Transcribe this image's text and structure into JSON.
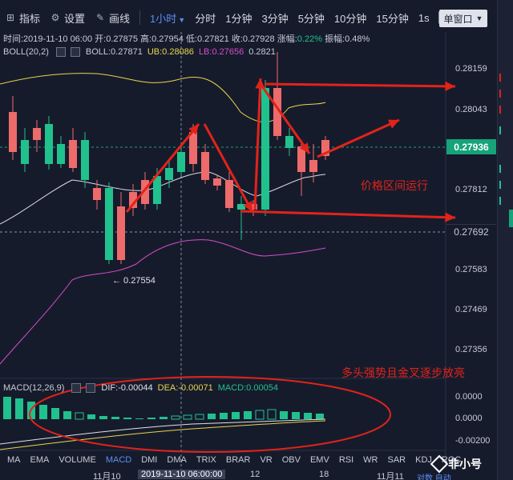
{
  "toolbar": {
    "indicator_label": "指标",
    "settings_label": "设置",
    "draw_label": "画线",
    "timeframes": [
      {
        "label": "1小时",
        "active": true
      },
      {
        "label": "分时",
        "active": false
      },
      {
        "label": "1分钟",
        "active": false
      },
      {
        "label": "3分钟",
        "active": false
      },
      {
        "label": "5分钟",
        "active": false
      },
      {
        "label": "10分钟",
        "active": false
      },
      {
        "label": "15分钟",
        "active": false
      },
      {
        "label": "1s",
        "active": false
      }
    ],
    "window_mode": "单窗口"
  },
  "ohlc_info": {
    "time": "时间:2019-11-10 06:00",
    "open": "开:0.27875",
    "high": "高:0.27954",
    "low": "低:0.27821",
    "close": "收:0.27928",
    "change_label": "涨幅:",
    "change_value": "0.22%",
    "amplitude": "振幅:0.48%"
  },
  "boll_info": {
    "name": "BOLL(20,2)",
    "boll": "BOLL:0.27871",
    "ub": "UB:0.28086",
    "lb": "LB:0.27656",
    "extra": "0.2821"
  },
  "price_axis": [
    "0.28159",
    "0.28043",
    "0.27812",
    "0.27583",
    "0.27469",
    "0.27356"
  ],
  "current_price": "0.27936",
  "reference_price": "0.27692",
  "low_marker": "← 0.27554",
  "macd_info": {
    "name": "MACD(12,26,9)",
    "dif": "DIF:-0.00044",
    "dea": "DEA:-0.00071",
    "macd": "MACD:0.00054"
  },
  "macd_axis": [
    "0.0000",
    "0.0000",
    "-0.00200"
  ],
  "indicators": [
    {
      "label": "MA",
      "active": false
    },
    {
      "label": "EMA",
      "active": false
    },
    {
      "label": "VOLUME",
      "active": false
    },
    {
      "label": "MACD",
      "active": true
    },
    {
      "label": "DMI",
      "active": false
    },
    {
      "label": "DMA",
      "active": false
    },
    {
      "label": "TRIX",
      "active": false
    },
    {
      "label": "BRAR",
      "active": false
    },
    {
      "label": "VR",
      "active": false
    },
    {
      "label": "OBV",
      "active": false
    },
    {
      "label": "EMV",
      "active": false
    },
    {
      "label": "RSI",
      "active": false
    },
    {
      "label": "WR",
      "active": false
    },
    {
      "label": "SAR",
      "active": false
    },
    {
      "label": "KDJ",
      "active": false
    },
    {
      "label": "ROC",
      "active": false
    }
  ],
  "time_axis": {
    "left": "11月10",
    "highlight": "2019-11-10 06:00:00",
    "mid": "12",
    "right": "18",
    "far": "11月11"
  },
  "annotations": {
    "range_text": "价格区间运行",
    "macd_text": "多头强势且金叉逐步放亮"
  },
  "logo": {
    "name": "非小号",
    "sub": "对数  自动"
  },
  "colors": {
    "up": "#21c18e",
    "down": "#ee6b6b",
    "ub": "#e9d64a",
    "lb": "#d24ec9",
    "mid": "#d8dbe3",
    "annotation": "#e2231a",
    "active": "#5b8ef5"
  }
}
